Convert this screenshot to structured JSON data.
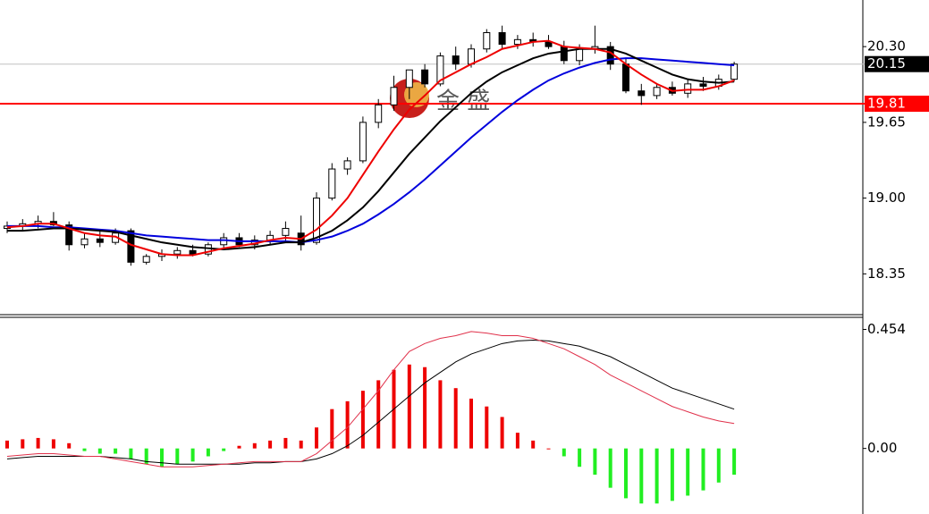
{
  "chart_data": [
    {
      "type": "candlestick",
      "open": [
        18.74,
        18.76,
        18.78,
        18.8,
        18.77,
        18.6,
        18.65,
        18.62,
        18.72,
        18.45,
        18.5,
        18.52,
        18.55,
        18.52,
        18.6,
        18.66,
        18.6,
        18.64,
        18.68,
        18.7,
        18.62,
        19.0,
        19.25,
        19.32,
        19.65,
        19.8,
        19.95,
        20.1,
        19.98,
        20.22,
        20.15,
        20.28,
        20.42,
        20.32,
        20.36,
        20.34,
        20.3,
        20.18,
        20.28,
        20.3,
        20.15,
        19.92,
        19.88,
        19.95,
        19.9,
        19.98,
        19.96,
        20.02
      ],
      "high": [
        18.8,
        18.82,
        18.85,
        18.88,
        18.8,
        18.7,
        18.72,
        18.74,
        18.74,
        18.52,
        18.56,
        18.58,
        18.6,
        18.62,
        18.7,
        18.7,
        18.68,
        18.72,
        18.8,
        18.85,
        19.05,
        19.3,
        19.35,
        19.7,
        19.85,
        20.05,
        20.1,
        20.15,
        20.25,
        20.3,
        20.32,
        20.45,
        20.48,
        20.4,
        20.42,
        20.4,
        20.35,
        20.32,
        20.48,
        20.34,
        20.2,
        19.98,
        19.98,
        20.0,
        20.02,
        20.04,
        20.06,
        20.17
      ],
      "low": [
        18.7,
        18.72,
        18.74,
        18.76,
        18.55,
        18.57,
        18.58,
        18.6,
        18.42,
        18.43,
        18.46,
        18.48,
        18.5,
        18.5,
        18.56,
        18.58,
        18.56,
        18.6,
        18.62,
        18.55,
        18.6,
        18.98,
        19.2,
        19.3,
        19.6,
        19.75,
        19.85,
        19.95,
        19.96,
        20.1,
        20.12,
        20.25,
        20.28,
        20.28,
        20.3,
        20.28,
        20.15,
        20.14,
        20.24,
        20.1,
        19.9,
        19.8,
        19.85,
        19.88,
        19.86,
        19.92,
        19.93,
        20.0
      ],
      "close": [
        18.76,
        18.78,
        18.8,
        18.77,
        18.6,
        18.65,
        18.62,
        18.7,
        18.45,
        18.5,
        18.52,
        18.55,
        18.52,
        18.6,
        18.66,
        18.6,
        18.64,
        18.68,
        18.74,
        18.6,
        19.0,
        19.25,
        19.32,
        19.65,
        19.8,
        19.95,
        20.1,
        19.98,
        20.22,
        20.15,
        20.28,
        20.42,
        20.32,
        20.36,
        20.34,
        20.3,
        20.18,
        20.28,
        20.3,
        20.15,
        19.92,
        19.88,
        19.95,
        19.9,
        19.98,
        19.96,
        20.02,
        20.15
      ],
      "up_color": "#ffffff",
      "down_color": "#000000",
      "series": [
        {
          "color": "#0000dd",
          "values": [
            18.76,
            18.76,
            18.76,
            18.75,
            18.75,
            18.74,
            18.73,
            18.72,
            18.7,
            18.68,
            18.67,
            18.66,
            18.65,
            18.64,
            18.64,
            18.63,
            18.63,
            18.63,
            18.63,
            18.62,
            18.64,
            18.67,
            18.72,
            18.78,
            18.86,
            18.95,
            19.05,
            19.16,
            19.28,
            19.4,
            19.52,
            19.63,
            19.74,
            19.84,
            19.93,
            20.01,
            20.07,
            20.12,
            20.16,
            20.19,
            20.2,
            20.2,
            20.19,
            20.18,
            20.17,
            20.16,
            20.15,
            20.14
          ]
        },
        {
          "color": "#000000",
          "values": [
            18.72,
            18.72,
            18.73,
            18.74,
            18.74,
            18.73,
            18.72,
            18.71,
            18.68,
            18.65,
            18.62,
            18.6,
            18.58,
            18.57,
            18.56,
            18.57,
            18.58,
            18.6,
            18.62,
            18.62,
            18.66,
            18.72,
            18.81,
            18.92,
            19.06,
            19.22,
            19.38,
            19.52,
            19.66,
            19.78,
            19.9,
            20.0,
            20.08,
            20.14,
            20.2,
            20.24,
            20.26,
            20.28,
            20.28,
            20.28,
            20.24,
            20.18,
            20.12,
            20.06,
            20.02,
            20.0,
            19.99,
            20.0
          ]
        },
        {
          "color": "#ee0000",
          "values": [
            18.75,
            18.76,
            18.78,
            18.78,
            18.74,
            18.7,
            18.68,
            18.67,
            18.6,
            18.56,
            18.52,
            18.51,
            18.51,
            18.54,
            18.57,
            18.59,
            18.61,
            18.64,
            18.66,
            18.65,
            18.73,
            18.85,
            19.0,
            19.2,
            19.4,
            19.59,
            19.76,
            19.88,
            20.01,
            20.08,
            20.15,
            20.21,
            20.28,
            20.31,
            20.34,
            20.35,
            20.3,
            20.29,
            20.28,
            20.25,
            20.15,
            20.06,
            19.98,
            19.92,
            19.93,
            19.93,
            19.96,
            20.01
          ]
        }
      ],
      "hlines": [
        {
          "value": 20.15,
          "color": "#c0c0c0",
          "label_color": "#000000"
        },
        {
          "value": 19.81,
          "color": "#ff0000",
          "label_color": "#ff0000"
        }
      ],
      "ylim": [
        18.0,
        20.7
      ],
      "yticks": [
        {
          "value": 20.3,
          "label": "20.30"
        },
        {
          "value": 19.65,
          "label": "19.65"
        },
        {
          "value": 19.0,
          "label": "19.00"
        },
        {
          "value": 18.35,
          "label": "18.35"
        }
      ],
      "watermark": "金 盛"
    },
    {
      "type": "macd",
      "histogram": [
        0.03,
        0.035,
        0.04,
        0.035,
        0.02,
        -0.01,
        -0.02,
        -0.02,
        -0.04,
        -0.06,
        -0.07,
        -0.06,
        -0.05,
        -0.03,
        -0.01,
        0.01,
        0.02,
        0.03,
        0.04,
        0.03,
        0.08,
        0.15,
        0.18,
        0.22,
        0.26,
        0.3,
        0.32,
        0.31,
        0.26,
        0.23,
        0.19,
        0.16,
        0.12,
        0.06,
        0.03,
        0.0,
        -0.03,
        -0.07,
        -0.1,
        -0.15,
        -0.19,
        -0.21,
        -0.21,
        -0.2,
        -0.18,
        -0.16,
        -0.13,
        -0.1
      ],
      "positive_color": "#ee0000",
      "negative_color": "#22ee22",
      "series": [
        {
          "color": "#000000",
          "values": [
            -0.04,
            -0.035,
            -0.03,
            -0.03,
            -0.03,
            -0.03,
            -0.03,
            -0.035,
            -0.04,
            -0.05,
            -0.055,
            -0.06,
            -0.06,
            -0.06,
            -0.06,
            -0.06,
            -0.055,
            -0.055,
            -0.05,
            -0.05,
            -0.04,
            -0.02,
            0.01,
            0.05,
            0.1,
            0.15,
            0.2,
            0.25,
            0.29,
            0.33,
            0.36,
            0.38,
            0.4,
            0.41,
            0.413,
            0.41,
            0.4,
            0.39,
            0.37,
            0.35,
            0.32,
            0.29,
            0.26,
            0.23,
            0.21,
            0.19,
            0.17,
            0.15
          ]
        },
        {
          "color": "#e0304a",
          "values": [
            -0.03,
            -0.025,
            -0.02,
            -0.02,
            -0.025,
            -0.03,
            -0.03,
            -0.04,
            -0.05,
            -0.06,
            -0.07,
            -0.07,
            -0.07,
            -0.065,
            -0.06,
            -0.055,
            -0.05,
            -0.05,
            -0.05,
            -0.05,
            -0.02,
            0.03,
            0.08,
            0.15,
            0.22,
            0.3,
            0.37,
            0.4,
            0.42,
            0.43,
            0.446,
            0.44,
            0.43,
            0.43,
            0.42,
            0.4,
            0.38,
            0.35,
            0.32,
            0.28,
            0.25,
            0.22,
            0.19,
            0.16,
            0.14,
            0.12,
            0.105,
            0.095
          ]
        }
      ],
      "ylim": [
        -0.25,
        0.5
      ],
      "yticks": [
        0.454,
        {
          "value": 0,
          "label": "0.00"
        }
      ]
    }
  ]
}
